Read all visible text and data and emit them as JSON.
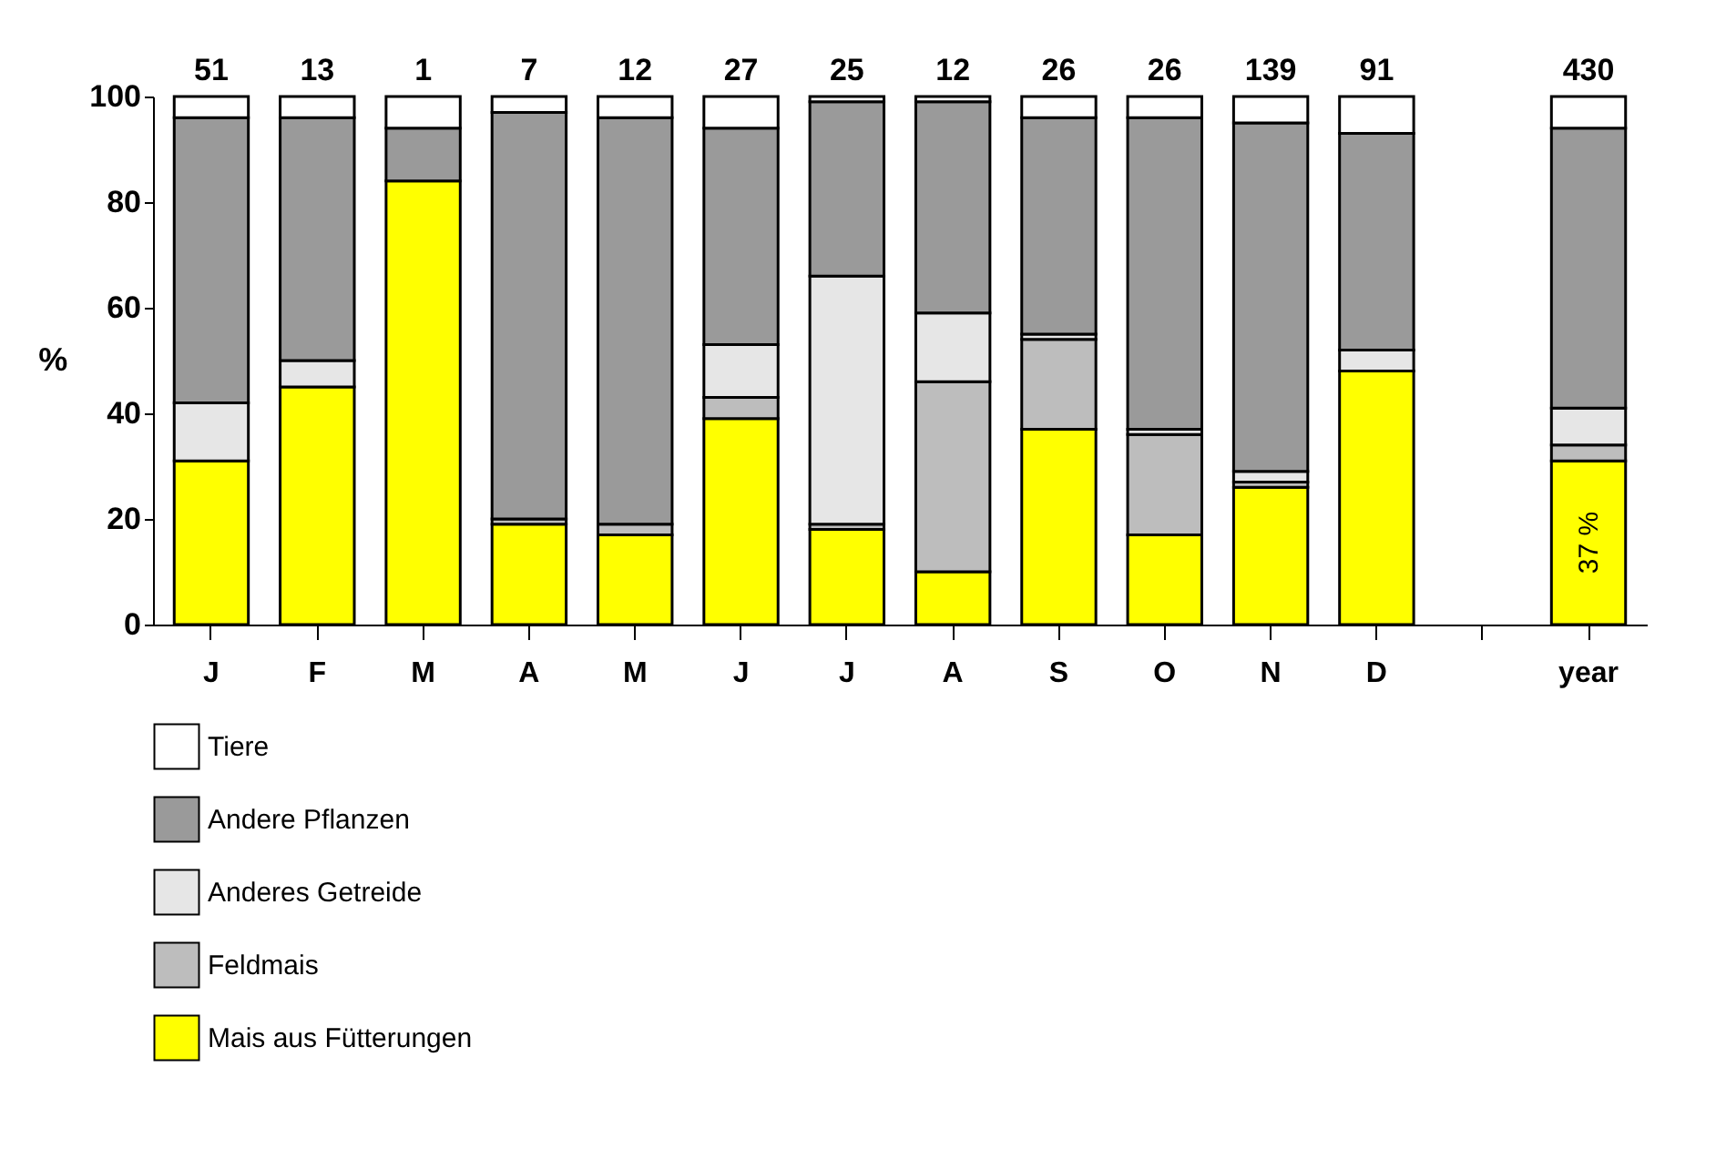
{
  "chart_data": {
    "type": "bar",
    "stacked": true,
    "ylabel": "%",
    "categories": [
      "J",
      "F",
      "M",
      "A",
      "M",
      "J",
      "J",
      "A",
      "S",
      "O",
      "N",
      "D",
      null,
      "year"
    ],
    "series": [
      {
        "name": "Mais aus Fütterungen",
        "color": "#ffff00",
        "values": [
          31,
          45,
          84,
          19,
          17,
          39,
          18,
          10,
          37,
          17,
          26,
          48,
          null,
          31
        ]
      },
      {
        "name": "Feldmais",
        "color": "#bdbdbd",
        "values": [
          0,
          0,
          0,
          1,
          2,
          4,
          1,
          36,
          17,
          19,
          1,
          0,
          null,
          3
        ]
      },
      {
        "name": "Anderes Getreide",
        "color": "#e6e6e6",
        "values": [
          11,
          5,
          0,
          0,
          0,
          10,
          47,
          13,
          1,
          1,
          2,
          4,
          null,
          7
        ]
      },
      {
        "name": "Andere Pflanzen",
        "color": "#9a9a9a",
        "values": [
          54,
          46,
          10,
          77,
          77,
          41,
          33,
          40,
          41,
          59,
          66,
          41,
          null,
          53
        ]
      },
      {
        "name": "Tiere",
        "color": "#ffffff",
        "values": [
          4,
          4,
          6,
          3,
          4,
          6,
          1,
          1,
          4,
          4,
          5,
          7,
          null,
          6
        ]
      }
    ],
    "annotations": [
      "51",
      "13",
      "1",
      "7",
      "12",
      "27",
      "25",
      "12",
      "26",
      "26",
      "139",
      "91",
      "430",
      "37 %"
    ],
    "ylim": [
      0,
      100
    ],
    "yticks": [
      0,
      20,
      40,
      60,
      80,
      100
    ],
    "grid": false,
    "legend": "bottom"
  }
}
